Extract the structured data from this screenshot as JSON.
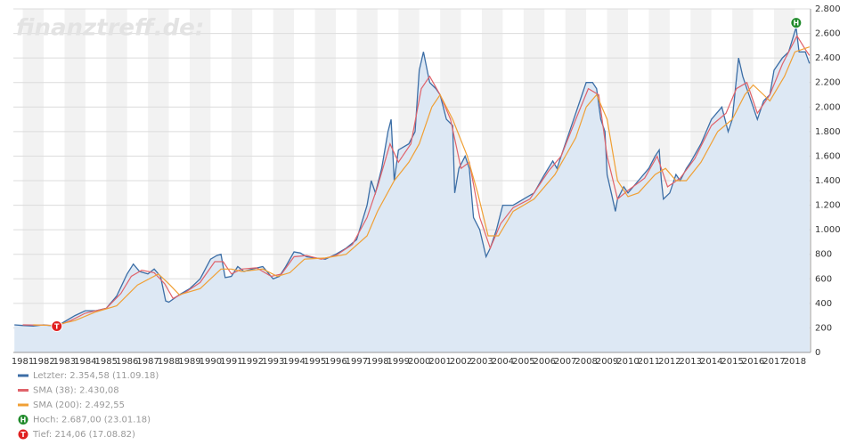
{
  "chart_data": {
    "type": "line",
    "watermark": "finanztreff.de:",
    "xlim": [
      1980.55,
      2018.75
    ],
    "xticks": [
      1981,
      1982,
      1983,
      1984,
      1985,
      1986,
      1987,
      1988,
      1989,
      1990,
      1991,
      1992,
      1993,
      1994,
      1995,
      1996,
      1997,
      1998,
      1999,
      2000,
      2001,
      2002,
      2003,
      2004,
      2005,
      2006,
      2007,
      2008,
      2009,
      2010,
      2011,
      2012,
      2013,
      2014,
      2015,
      2016,
      2017,
      2018
    ],
    "ylim": [
      0,
      2800
    ],
    "yticks": [
      0,
      200,
      400,
      600,
      800,
      {
        "value": 1000,
        "label": "1.000"
      },
      {
        "value": 1200,
        "label": "1.200"
      },
      {
        "value": 1400,
        "label": "1.400"
      },
      {
        "value": 1600,
        "label": "1.600"
      },
      {
        "value": 1800,
        "label": "1.800"
      },
      {
        "value": 2000,
        "label": "2.000"
      },
      {
        "value": 2200,
        "label": "2.200"
      },
      {
        "value": 2400,
        "label": "2.400"
      },
      {
        "value": 2600,
        "label": "2.600"
      },
      {
        "value": 2800,
        "label": "2.800"
      }
    ],
    "grid": true,
    "series": [
      {
        "name": "Letzter: 2.354,58 (11.09.18)",
        "color": "#3c6ea6",
        "area_color": "#dde8f4",
        "x": [
          1980.6,
          1981.0,
          1981.5,
          1982.0,
          1982.63,
          1983.0,
          1983.5,
          1984.0,
          1984.5,
          1985.0,
          1985.5,
          1986.0,
          1986.3,
          1986.6,
          1987.0,
          1987.3,
          1987.6,
          1987.85,
          1988.0,
          1988.5,
          1989.0,
          1989.5,
          1990.0,
          1990.3,
          1990.5,
          1990.7,
          1991.0,
          1991.3,
          1991.6,
          1992.0,
          1992.5,
          1992.8,
          1993.0,
          1993.3,
          1993.6,
          1994.0,
          1994.3,
          1994.6,
          1995.0,
          1995.5,
          1996.0,
          1996.5,
          1997.0,
          1997.5,
          1997.7,
          1997.9,
          1998.2,
          1998.5,
          1998.65,
          1998.8,
          1999.0,
          1999.5,
          1999.8,
          2000.0,
          2000.2,
          2000.5,
          2000.8,
          2001.0,
          2001.3,
          2001.6,
          2001.7,
          2001.9,
          2002.2,
          2002.4,
          2002.6,
          2002.9,
          2003.2,
          2003.4,
          2003.7,
          2004.0,
          2004.5,
          2005.0,
          2005.5,
          2006.0,
          2006.4,
          2006.6,
          2007.0,
          2007.5,
          2007.8,
          2008.0,
          2008.3,
          2008.5,
          2008.7,
          2008.9,
          2009.0,
          2009.2,
          2009.4,
          2009.5,
          2009.8,
          2010.0,
          2010.5,
          2011.0,
          2011.3,
          2011.5,
          2011.6,
          2011.7,
          2012.0,
          2012.3,
          2012.5,
          2012.8,
          2013.0,
          2013.5,
          2014.0,
          2014.5,
          2014.8,
          2015.0,
          2015.3,
          2015.5,
          2015.7,
          2016.0,
          2016.2,
          2016.5,
          2016.8,
          2017.0,
          2017.4,
          2017.7,
          2018.06,
          2018.2,
          2018.5,
          2018.7
        ],
        "values": [
          225,
          220,
          215,
          225,
          214,
          250,
          300,
          340,
          340,
          360,
          460,
          640,
          720,
          660,
          640,
          680,
          620,
          420,
          410,
          470,
          520,
          600,
          760,
          790,
          800,
          610,
          620,
          700,
          660,
          680,
          700,
          640,
          600,
          620,
          700,
          820,
          810,
          780,
          770,
          760,
          800,
          850,
          920,
          1200,
          1400,
          1300,
          1500,
          1800,
          1900,
          1400,
          1650,
          1700,
          1800,
          2300,
          2450,
          2200,
          2150,
          2100,
          1900,
          1850,
          1300,
          1500,
          1600,
          1500,
          1100,
          1000,
          780,
          850,
          1000,
          1200,
          1200,
          1250,
          1300,
          1450,
          1560,
          1500,
          1700,
          1950,
          2100,
          2200,
          2200,
          2150,
          1900,
          1800,
          1450,
          1300,
          1150,
          1250,
          1350,
          1300,
          1400,
          1500,
          1600,
          1650,
          1400,
          1250,
          1300,
          1450,
          1400,
          1500,
          1550,
          1700,
          1900,
          2000,
          1800,
          1900,
          2400,
          2250,
          2150,
          2000,
          1900,
          2050,
          2100,
          2300,
          2400,
          2450,
          2650,
          2450,
          2450,
          2355
        ]
      },
      {
        "name": "SMA (38): 2.430,08",
        "color": "#e0636b",
        "x": [
          1981,
          1982,
          1982.7,
          1983.3,
          1984,
          1985,
          1985.7,
          1986.2,
          1986.7,
          1987.3,
          1987.8,
          1988.2,
          1988.8,
          1989.5,
          1990.2,
          1990.6,
          1991.0,
          1991.5,
          1992.2,
          1992.9,
          1993.4,
          1994.0,
          1994.6,
          1995.3,
          1996.0,
          1996.8,
          1997.5,
          1998.0,
          1998.6,
          1999.0,
          1999.6,
          2000.1,
          2000.5,
          2001.0,
          2001.5,
          2002.0,
          2002.4,
          2002.9,
          2003.4,
          2003.9,
          2004.5,
          2005.3,
          2006.2,
          2006.8,
          2007.5,
          2008.1,
          2008.6,
          2009.0,
          2009.5,
          2010.0,
          2010.8,
          2011.4,
          2011.9,
          2012.5,
          2013.2,
          2014.0,
          2014.7,
          2015.2,
          2015.7,
          2016.2,
          2016.8,
          2017.4,
          2018.1,
          2018.5,
          2018.7
        ],
        "values": [
          225,
          222,
          220,
          260,
          320,
          360,
          480,
          620,
          670,
          650,
          560,
          440,
          490,
          570,
          740,
          740,
          640,
          680,
          690,
          620,
          640,
          780,
          790,
          760,
          790,
          880,
          1100,
          1350,
          1700,
          1550,
          1700,
          2150,
          2250,
          2100,
          1900,
          1500,
          1550,
          1100,
          850,
          1050,
          1180,
          1250,
          1480,
          1600,
          1900,
          2150,
          2100,
          1600,
          1250,
          1320,
          1420,
          1600,
          1350,
          1420,
          1580,
          1850,
          1950,
          2150,
          2200,
          1950,
          2100,
          2350,
          2580,
          2470,
          2420
        ]
      },
      {
        "name": "SMA (200): 2.492,55",
        "color": "#f0a035",
        "x": [
          1981.5,
          1982.5,
          1983.5,
          1984.5,
          1985.5,
          1986.5,
          1987.5,
          1988.0,
          1988.5,
          1989.5,
          1990.5,
          1991.0,
          1991.5,
          1992.5,
          1993.2,
          1993.8,
          1994.5,
          1995.5,
          1996.5,
          1997.5,
          1998.0,
          1998.8,
          1999.5,
          2000.0,
          2000.6,
          2001.0,
          2001.6,
          2002.3,
          2002.8,
          2003.3,
          2003.8,
          2004.5,
          2005.5,
          2006.5,
          2007.5,
          2008.0,
          2008.5,
          2009.0,
          2009.5,
          2010.0,
          2010.5,
          2011.3,
          2011.8,
          2012.3,
          2012.8,
          2013.5,
          2014.3,
          2015.0,
          2015.6,
          2016.0,
          2016.5,
          2016.8,
          2017.5,
          2018.0,
          2018.7
        ],
        "values": [
          225,
          220,
          260,
          330,
          380,
          550,
          640,
          560,
          470,
          520,
          680,
          680,
          660,
          680,
          620,
          650,
          760,
          770,
          800,
          950,
          1150,
          1400,
          1550,
          1700,
          2000,
          2100,
          1900,
          1600,
          1300,
          950,
          950,
          1150,
          1250,
          1450,
          1750,
          2000,
          2100,
          1900,
          1400,
          1270,
          1300,
          1450,
          1500,
          1400,
          1400,
          1550,
          1800,
          1900,
          2100,
          2180,
          2100,
          2050,
          2250,
          2450,
          2490
        ]
      }
    ],
    "markers": [
      {
        "label": "H",
        "text": "Hoch: 2.687,00 (23.01.18)",
        "x": 2018.06,
        "y": 2687,
        "color": "#1f8a2a"
      },
      {
        "label": "T",
        "text": "Tief: 214,06 (17.08.82)",
        "x": 1982.63,
        "y": 214.06,
        "color": "#e02020"
      }
    ]
  }
}
